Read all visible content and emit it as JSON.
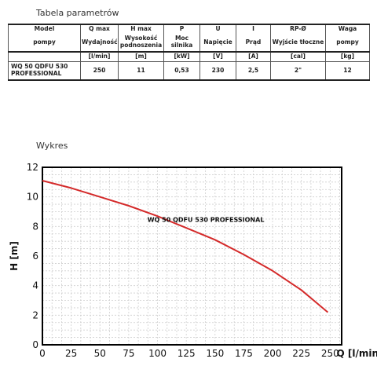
{
  "table_title": "Tabela parametrów",
  "params": {
    "columns": [
      {
        "head": "Model",
        "name": "pompy",
        "unit": "",
        "value": "WQ 50 QDFU 530 PROFESSIONAL"
      },
      {
        "head": "Q max",
        "name": "Wydajność",
        "unit": "[l/min]",
        "value": "250"
      },
      {
        "head": "H max",
        "name": "Wysokość podnoszenia",
        "unit": "[m]",
        "value": "11"
      },
      {
        "head": "P",
        "name": "Moc silnika",
        "unit": "[kW]",
        "value": "0,53"
      },
      {
        "head": "U",
        "name": "Napięcie",
        "unit": "[V]",
        "value": "230"
      },
      {
        "head": "I",
        "name": "Prąd",
        "unit": "[A]",
        "value": "2,5"
      },
      {
        "head": "RP-Ø",
        "name": "Wyjście tłoczne",
        "unit": "[cal]",
        "value": "2\""
      },
      {
        "head": "Waga",
        "name": "pompy",
        "unit": "[kg]",
        "value": "12"
      }
    ]
  },
  "chart_title": "Wykres",
  "chart_data": {
    "type": "line",
    "xlabel": "Q [l/min]",
    "ylabel": "H [m]",
    "xlim": [
      0,
      260
    ],
    "ylim": [
      0,
      12
    ],
    "xticks": [
      0,
      25,
      50,
      75,
      100,
      125,
      150,
      175,
      200,
      225,
      250
    ],
    "yticks": [
      0,
      2,
      4,
      6,
      8,
      10,
      12
    ],
    "grid": true,
    "annotation": "WQ 50 QDFU 530 PROFESSIONAL",
    "series": [
      {
        "color": "#d42a2a",
        "x": [
          0,
          25,
          50,
          75,
          100,
          125,
          150,
          175,
          200,
          225,
          248
        ],
        "y": [
          11.1,
          10.6,
          10.0,
          9.4,
          8.7,
          7.9,
          7.1,
          6.1,
          5.0,
          3.7,
          2.2
        ]
      }
    ]
  }
}
